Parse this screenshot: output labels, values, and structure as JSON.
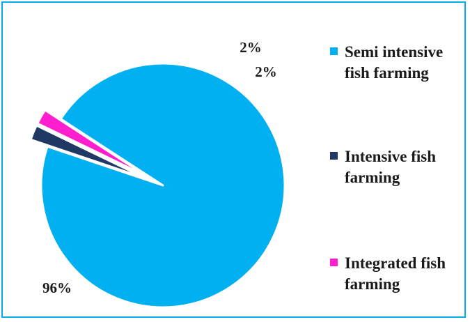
{
  "chart_data": {
    "type": "pie",
    "title": "",
    "slices": [
      {
        "name": "Semi intensive fish farming",
        "value": 96,
        "label": "96%",
        "color": "#00b0f0"
      },
      {
        "name": "Intensive fish farming",
        "value": 2,
        "label": "2%",
        "color": "#1f3864"
      },
      {
        "name": "Integrated fish farming",
        "value": 2,
        "label": "2%",
        "color": "#ff1fce"
      }
    ],
    "exploded": true,
    "legend_position": "right",
    "legend": [
      {
        "label": "Semi intensive fish farming",
        "color": "#00b0f0"
      },
      {
        "label": "Intensive fish farming",
        "color": "#1f3864"
      },
      {
        "label": "Integrated fish farming",
        "color": "#ff1fce"
      }
    ]
  }
}
